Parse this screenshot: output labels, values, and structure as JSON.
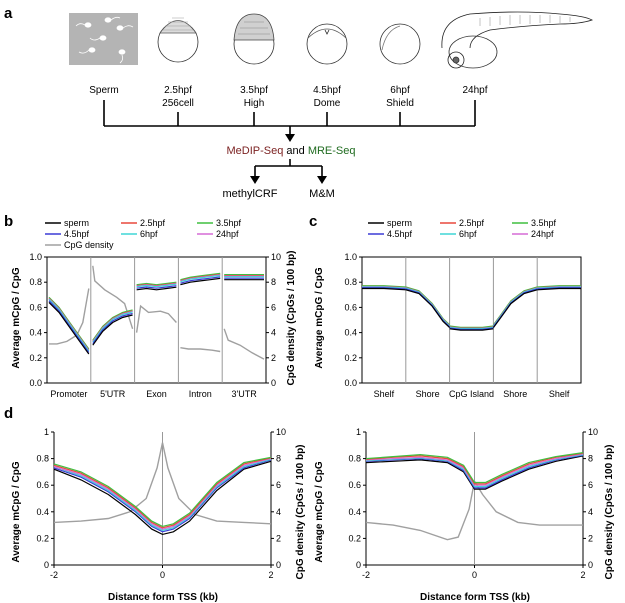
{
  "panel_a": {
    "letter": "a",
    "stages": [
      {
        "line1": "Sperm",
        "line2": ""
      },
      {
        "line1": "2.5hpf",
        "line2": "256cell"
      },
      {
        "line1": "3.5hpf",
        "line2": "High"
      },
      {
        "line1": "4.5hpf",
        "line2": "Dome"
      },
      {
        "line1": "6hpf",
        "line2": "Shield"
      },
      {
        "line1": "24hpf",
        "line2": ""
      }
    ],
    "method_a": "MeDIP-Seq",
    "method_and": "and",
    "method_b": "MRE-Seq",
    "outputs": [
      "methylCRF",
      "M&M"
    ]
  },
  "colors": {
    "sperm": "#000000",
    "h25": "#e8493c",
    "h35": "#3fbf3f",
    "h45": "#3b3bd6",
    "h6": "#3fd6d6",
    "h24": "#d66bd6",
    "density": "#a0a0a0",
    "methyl_red": "#7a1f1f",
    "methyl_green": "#1f6b1f"
  },
  "chart_data": [
    {
      "id": "b",
      "letter": "b",
      "type": "line",
      "ylabel": "Average mCpG / CpG",
      "y2label": "CpG density (CpGs / 100 bp)",
      "ylim": [
        0,
        1.0
      ],
      "y2lim": [
        0,
        10
      ],
      "yticks": [
        "0.0",
        "0.2",
        "0.4",
        "0.6",
        "0.8",
        "1.0"
      ],
      "y2ticks": [
        "0",
        "2",
        "4",
        "6",
        "8",
        "10"
      ],
      "categories": [
        "Promoter",
        "5'UTR",
        "Exon",
        "Intron",
        "3'UTR"
      ],
      "legend": [
        {
          "name": "sperm",
          "key": "sperm"
        },
        {
          "name": "2.5hpf",
          "key": "h25"
        },
        {
          "name": "3.5hpf",
          "key": "h35"
        },
        {
          "name": "4.5hpf",
          "key": "h45"
        },
        {
          "name": "6hpf",
          "key": "h6"
        },
        {
          "name": "24hpf",
          "key": "h24"
        },
        {
          "name": "CpG density",
          "key": "density"
        }
      ],
      "segments": [
        {
          "x": [
            0,
            0.25,
            0.5,
            0.75,
            1.0
          ],
          "base": [
            0.66,
            0.58,
            0.47,
            0.36,
            0.25
          ]
        },
        {
          "x": [
            0,
            0.25,
            0.5,
            0.75,
            1.0
          ],
          "base": [
            0.32,
            0.43,
            0.5,
            0.54,
            0.56
          ]
        },
        {
          "x": [
            0,
            0.25,
            0.5,
            0.75,
            1.0
          ],
          "base": [
            0.76,
            0.77,
            0.76,
            0.77,
            0.78
          ]
        },
        {
          "x": [
            0,
            0.25,
            0.5,
            0.75,
            1.0
          ],
          "base": [
            0.8,
            0.82,
            0.83,
            0.84,
            0.85
          ]
        },
        {
          "x": [
            0,
            0.25,
            0.5,
            0.75,
            1.0
          ],
          "base": [
            0.84,
            0.84,
            0.84,
            0.84,
            0.84
          ]
        }
      ],
      "offsets": {
        "sperm": -0.02,
        "h25": 0.012,
        "h35": 0.02,
        "h45": -0.008,
        "h6": 0.004,
        "h24": 0.008
      },
      "density_segments": [
        {
          "x": [
            0,
            0.2,
            0.45,
            0.7,
            0.85,
            1.0
          ],
          "y": [
            3.1,
            3.1,
            3.3,
            3.8,
            4.8,
            7.5
          ]
        },
        {
          "x": [
            0,
            0.05,
            0.3,
            0.6,
            0.8,
            1.0
          ],
          "y": [
            9.3,
            8.1,
            7.4,
            6.8,
            6.3,
            4.3
          ]
        },
        {
          "x": [
            0,
            0.1,
            0.3,
            0.6,
            0.8,
            1.0
          ],
          "y": [
            4.0,
            6.1,
            5.6,
            5.7,
            5.5,
            4.8
          ]
        },
        {
          "x": [
            0,
            0.2,
            0.5,
            0.8,
            1.0
          ],
          "y": [
            2.8,
            2.7,
            2.7,
            2.6,
            2.5
          ]
        },
        {
          "x": [
            0,
            0.1,
            0.4,
            0.7,
            1.0
          ],
          "y": [
            4.3,
            3.4,
            3.0,
            2.4,
            1.9
          ]
        }
      ]
    },
    {
      "id": "c",
      "letter": "c",
      "type": "line",
      "ylabel": "Average mCpG / CpG",
      "ylim": [
        0,
        1.0
      ],
      "yticks": [
        "0.0",
        "0.2",
        "0.4",
        "0.6",
        "0.8",
        "1.0"
      ],
      "categories": [
        "Shelf",
        "Shore",
        "CpG Island",
        "Shore",
        "Shelf"
      ],
      "legend": [
        {
          "name": "sperm",
          "key": "sperm"
        },
        {
          "name": "2.5hpf",
          "key": "h25"
        },
        {
          "name": "3.5hpf",
          "key": "h35"
        },
        {
          "name": "4.5hpf",
          "key": "h45"
        },
        {
          "name": "6hpf",
          "key": "h6"
        },
        {
          "name": "24hpf",
          "key": "h24"
        }
      ],
      "segments": [
        {
          "x": [
            0,
            0.5,
            1.0
          ],
          "base": [
            0.76,
            0.76,
            0.75
          ]
        },
        {
          "x": [
            0,
            0.3,
            0.6,
            0.85,
            1.0
          ],
          "base": [
            0.75,
            0.72,
            0.62,
            0.5,
            0.45
          ]
        },
        {
          "x": [
            0,
            0.25,
            0.5,
            0.75,
            1.0
          ],
          "base": [
            0.44,
            0.43,
            0.43,
            0.43,
            0.44
          ]
        },
        {
          "x": [
            0,
            0.15,
            0.4,
            0.7,
            1.0
          ],
          "base": [
            0.45,
            0.52,
            0.64,
            0.72,
            0.75
          ]
        },
        {
          "x": [
            0,
            0.5,
            1.0
          ],
          "base": [
            0.75,
            0.76,
            0.76
          ]
        }
      ],
      "offsets": {
        "sperm": -0.01,
        "h25": 0.006,
        "h35": 0.012,
        "h45": -0.004,
        "h6": 0.002,
        "h24": 0.004
      }
    },
    {
      "id": "d1",
      "letter": "d",
      "type": "line",
      "ylabel": "Average mCpG / CpG",
      "y2label": "CpG density (CpGs / 100 bp)",
      "xlabel": "Distance form TSS (kb)",
      "ylim": [
        0,
        1.0
      ],
      "y2lim": [
        0,
        10
      ],
      "xlim": [
        -2,
        2
      ],
      "yticks": [
        "0",
        "0.2",
        "0.4",
        "0.6",
        "0.8",
        "1"
      ],
      "y2ticks": [
        "0",
        "2",
        "4",
        "6",
        "8",
        "10"
      ],
      "xticks": [
        "-2",
        "0",
        "2"
      ],
      "x": [
        -2,
        -1.5,
        -1,
        -0.5,
        -0.2,
        0,
        0.2,
        0.5,
        1,
        1.5,
        2
      ],
      "series": [
        {
          "key": "sperm",
          "values": [
            0.72,
            0.64,
            0.53,
            0.38,
            0.27,
            0.23,
            0.25,
            0.33,
            0.56,
            0.72,
            0.78
          ]
        },
        {
          "key": "h45",
          "values": [
            0.73,
            0.66,
            0.55,
            0.4,
            0.29,
            0.25,
            0.27,
            0.35,
            0.58,
            0.73,
            0.79
          ]
        },
        {
          "key": "h6",
          "values": [
            0.74,
            0.67,
            0.56,
            0.41,
            0.3,
            0.26,
            0.28,
            0.36,
            0.59,
            0.74,
            0.795
          ]
        },
        {
          "key": "h24",
          "values": [
            0.74,
            0.68,
            0.57,
            0.42,
            0.31,
            0.27,
            0.29,
            0.37,
            0.6,
            0.75,
            0.8
          ]
        },
        {
          "key": "h25",
          "values": [
            0.75,
            0.69,
            0.58,
            0.43,
            0.32,
            0.28,
            0.3,
            0.38,
            0.61,
            0.76,
            0.805
          ]
        },
        {
          "key": "h35",
          "values": [
            0.76,
            0.7,
            0.59,
            0.44,
            0.33,
            0.29,
            0.31,
            0.39,
            0.62,
            0.77,
            0.81
          ]
        }
      ],
      "density": {
        "x": [
          -2,
          -1.5,
          -1,
          -0.6,
          -0.3,
          -0.1,
          0,
          0.1,
          0.3,
          0.6,
          1,
          1.5,
          2
        ],
        "y": [
          3.2,
          3.3,
          3.5,
          4.0,
          5.0,
          7.3,
          9.2,
          7.3,
          5.0,
          3.8,
          3.3,
          3.2,
          3.1
        ]
      }
    },
    {
      "id": "d2",
      "type": "line",
      "ylabel": "Average mCpG / CpG",
      "y2label": "CpG density (CpGs / 100 bp)",
      "xlabel": "Distance form TSS (kb)",
      "ylim": [
        0,
        1.0
      ],
      "y2lim": [
        0,
        10
      ],
      "xlim": [
        -2,
        2
      ],
      "yticks": [
        "0",
        "0.2",
        "0.4",
        "0.6",
        "0.8",
        "1"
      ],
      "y2ticks": [
        "0",
        "2",
        "4",
        "6",
        "8",
        "10"
      ],
      "xticks": [
        "-2",
        "0",
        "2"
      ],
      "x": [
        -2,
        -1.5,
        -1,
        -0.5,
        -0.2,
        0,
        0.2,
        0.5,
        1,
        1.5,
        2
      ],
      "series": [
        {
          "key": "sperm",
          "values": [
            0.77,
            0.78,
            0.79,
            0.77,
            0.7,
            0.57,
            0.57,
            0.63,
            0.72,
            0.78,
            0.82
          ]
        },
        {
          "key": "h45",
          "values": [
            0.78,
            0.79,
            0.8,
            0.78,
            0.71,
            0.58,
            0.58,
            0.64,
            0.73,
            0.79,
            0.825
          ]
        },
        {
          "key": "h6",
          "values": [
            0.785,
            0.795,
            0.805,
            0.785,
            0.72,
            0.59,
            0.59,
            0.65,
            0.74,
            0.795,
            0.83
          ]
        },
        {
          "key": "h24",
          "values": [
            0.79,
            0.8,
            0.81,
            0.79,
            0.73,
            0.6,
            0.6,
            0.66,
            0.75,
            0.8,
            0.835
          ]
        },
        {
          "key": "h25",
          "values": [
            0.795,
            0.81,
            0.82,
            0.8,
            0.74,
            0.61,
            0.61,
            0.67,
            0.76,
            0.81,
            0.84
          ]
        },
        {
          "key": "h35",
          "values": [
            0.8,
            0.815,
            0.83,
            0.81,
            0.75,
            0.62,
            0.62,
            0.68,
            0.77,
            0.815,
            0.845
          ]
        }
      ],
      "density": {
        "x": [
          -2,
          -1.5,
          -1,
          -0.5,
          -0.3,
          -0.1,
          0,
          0.15,
          0.4,
          0.8,
          1.2,
          1.6,
          2
        ],
        "y": [
          3.2,
          3.0,
          2.6,
          1.9,
          2.1,
          4.2,
          6.3,
          5.3,
          4.0,
          3.2,
          3.0,
          3.0,
          3.0
        ]
      }
    }
  ]
}
